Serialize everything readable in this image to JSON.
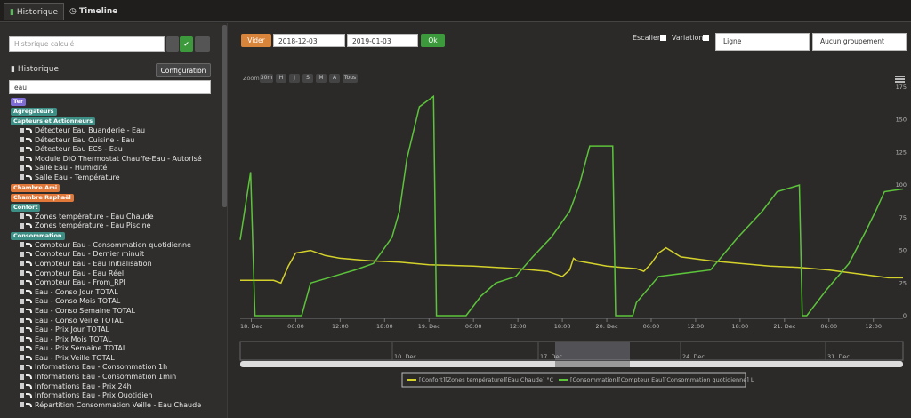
{
  "tabs": [
    "Historique",
    "Timeline"
  ],
  "sidebar": {
    "search_placeholder": "Historique calculé",
    "section_title": "Historique",
    "config_button": "Configuration",
    "filter_value": "eau",
    "tree": [
      {
        "group": "Ter",
        "color": "#7e6bd6",
        "items": []
      },
      {
        "group": "Agrégateurs",
        "color": "#3d8f86",
        "items": []
      },
      {
        "group": "Capteurs et Actionneurs",
        "color": "#3d8f86",
        "items": [
          "Détecteur Eau Buanderie - Eau",
          "Détecteur Eau Cuisine - Eau",
          "Détecteur Eau ECS - Eau",
          "Module DIO Thermostat Chauffe-Eau - Autorisé",
          "Salle Eau - Humidité",
          "Salle Eau - Température"
        ]
      },
      {
        "group": "Chambre Ami",
        "color": "#e0783a",
        "items": []
      },
      {
        "group": "Chambre Raphaël",
        "color": "#e0783a",
        "items": []
      },
      {
        "group": "Confort",
        "color": "#3d8f86",
        "items": [
          "Zones température - Eau Chaude",
          "Zones température - Eau Piscine"
        ]
      },
      {
        "group": "Consommation",
        "color": "#3d8f86",
        "items": [
          "Compteur Eau - Consommation quotidienne",
          "Compteur Eau - Dernier minuit",
          "Compteur Eau - Eau Initialisation",
          "Compteur Eau - Eau Réel",
          "Compteur Eau - From_RPI",
          "Eau - Conso Jour TOTAL",
          "Eau - Conso Mois TOTAL",
          "Eau - Conso Semaine TOTAL",
          "Eau - Conso Veille TOTAL",
          "Eau - Prix Jour TOTAL",
          "Eau - Prix Mois TOTAL",
          "Eau - Prix Semaine TOTAL",
          "Eau - Prix Veille TOTAL",
          "Informations Eau - Consommation 1h",
          "Informations Eau - Consommation 1min",
          "Informations Eau - Prix 24h",
          "Informations Eau - Prix Quotidien",
          "Répartition Consommation Veille - Eau Chaude"
        ]
      }
    ]
  },
  "toolbar": {
    "clear_button": "Vider",
    "start_date": "2018-12-03",
    "end_date": "2019-01-03",
    "ok_button": "Ok",
    "stair_label": "Escalier",
    "variation_label": "Variation",
    "chart_type": "Ligne",
    "grouping": "Aucun groupement"
  },
  "zoom": {
    "label": "Zoom",
    "buttons": [
      "30m",
      "H",
      "J",
      "S",
      "M",
      "A",
      "Tous"
    ]
  },
  "navigator": {
    "labels": [
      "10. Dec",
      "17. Dec",
      "24. Dec",
      "31. Dec"
    ]
  },
  "chart_data": {
    "type": "line",
    "xlim": [
      -1.5,
      88
    ],
    "ylim": [
      0,
      175
    ],
    "xticks": [
      {
        "value": 0,
        "label": "18. Dec"
      },
      {
        "value": 6,
        "label": "06:00"
      },
      {
        "value": 12,
        "label": "12:00"
      },
      {
        "value": 18,
        "label": "18:00"
      },
      {
        "value": 24,
        "label": "19. Dec"
      },
      {
        "value": 30,
        "label": "06:00"
      },
      {
        "value": 36,
        "label": "12:00"
      },
      {
        "value": 42,
        "label": "18:00"
      },
      {
        "value": 48,
        "label": "20. Dec"
      },
      {
        "value": 54,
        "label": "06:00"
      },
      {
        "value": 60,
        "label": "12:00"
      },
      {
        "value": 66,
        "label": "18:00"
      },
      {
        "value": 72,
        "label": "21. Dec"
      },
      {
        "value": 78,
        "label": "06:00"
      },
      {
        "value": 84,
        "label": "12:00"
      }
    ],
    "yticks": [
      0,
      25,
      50,
      75,
      100,
      125,
      150,
      175
    ],
    "grid": false,
    "series": [
      {
        "name": "[Confort][Zones température][Eau Chaude] °C",
        "color": "#d4d22a",
        "x": [
          -1.5,
          3,
          4,
          5,
          6,
          8,
          10,
          12,
          16,
          20,
          24,
          30,
          36,
          38,
          40,
          42,
          43,
          43.5,
          44,
          46,
          48,
          50,
          52,
          53,
          54,
          55,
          56,
          58,
          62,
          66,
          70,
          74,
          78,
          82,
          86,
          88
        ],
        "values": [
          27,
          27,
          25,
          38,
          48,
          50,
          46,
          44,
          42,
          41,
          39,
          38,
          36,
          35,
          34,
          30,
          35,
          44,
          42,
          40,
          38,
          37,
          36,
          34,
          40,
          48,
          52,
          45,
          42,
          40,
          38,
          37,
          35,
          32,
          29,
          29
        ]
      },
      {
        "name": "[Consommation][Compteur Eau][Consommation quotidienne] L",
        "color": "#5cc43a",
        "x": [
          -1.5,
          -0.1,
          0.5,
          6.8,
          8,
          14,
          16.5,
          19,
          20,
          21,
          22.7,
          24.6,
          25,
          29,
          31,
          33,
          35.7,
          38,
          40.5,
          43,
          44.3,
          45.7,
          48.8,
          49.2,
          51.5,
          52,
          55,
          62,
          65.7,
          69,
          71,
          74,
          74.4,
          75,
          77.7,
          80.7,
          83,
          84.3,
          85.5,
          88
        ],
        "values": [
          58,
          110,
          0,
          0,
          25,
          35,
          40,
          60,
          80,
          120,
          160,
          168,
          0,
          0,
          15,
          25,
          30,
          45,
          60,
          80,
          100,
          130,
          130,
          0,
          0,
          10,
          30,
          35,
          60,
          80,
          95,
          100,
          0,
          0,
          20,
          40,
          65,
          80,
          95,
          97
        ]
      }
    ]
  }
}
